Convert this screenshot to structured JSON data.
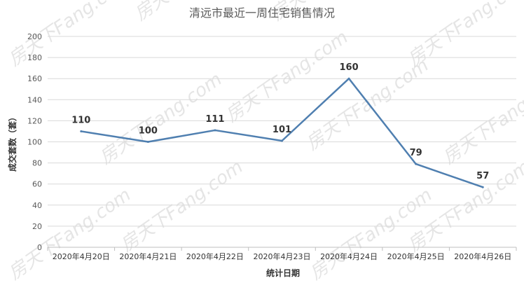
{
  "watermark": {
    "text": "房天下Fang.com"
  },
  "chart_data": {
    "type": "line",
    "title": "清远市最近一周住宅销售情况",
    "xlabel": "统计日期",
    "ylabel": "成交套数（套）",
    "categories": [
      "2020年4月20日",
      "2020年4月21日",
      "2020年4月22日",
      "2020年4月23日",
      "2020年4月24日",
      "2020年4月25日",
      "2020年4月26日"
    ],
    "series": [
      {
        "values": [
          110,
          100,
          111,
          101,
          160,
          79,
          57
        ],
        "color": "#4f7fb0"
      }
    ],
    "ylim": [
      0,
      200
    ],
    "yticks": [
      0,
      20,
      40,
      60,
      80,
      100,
      120,
      140,
      160,
      180,
      200
    ],
    "grid": true,
    "data_labels": true
  }
}
